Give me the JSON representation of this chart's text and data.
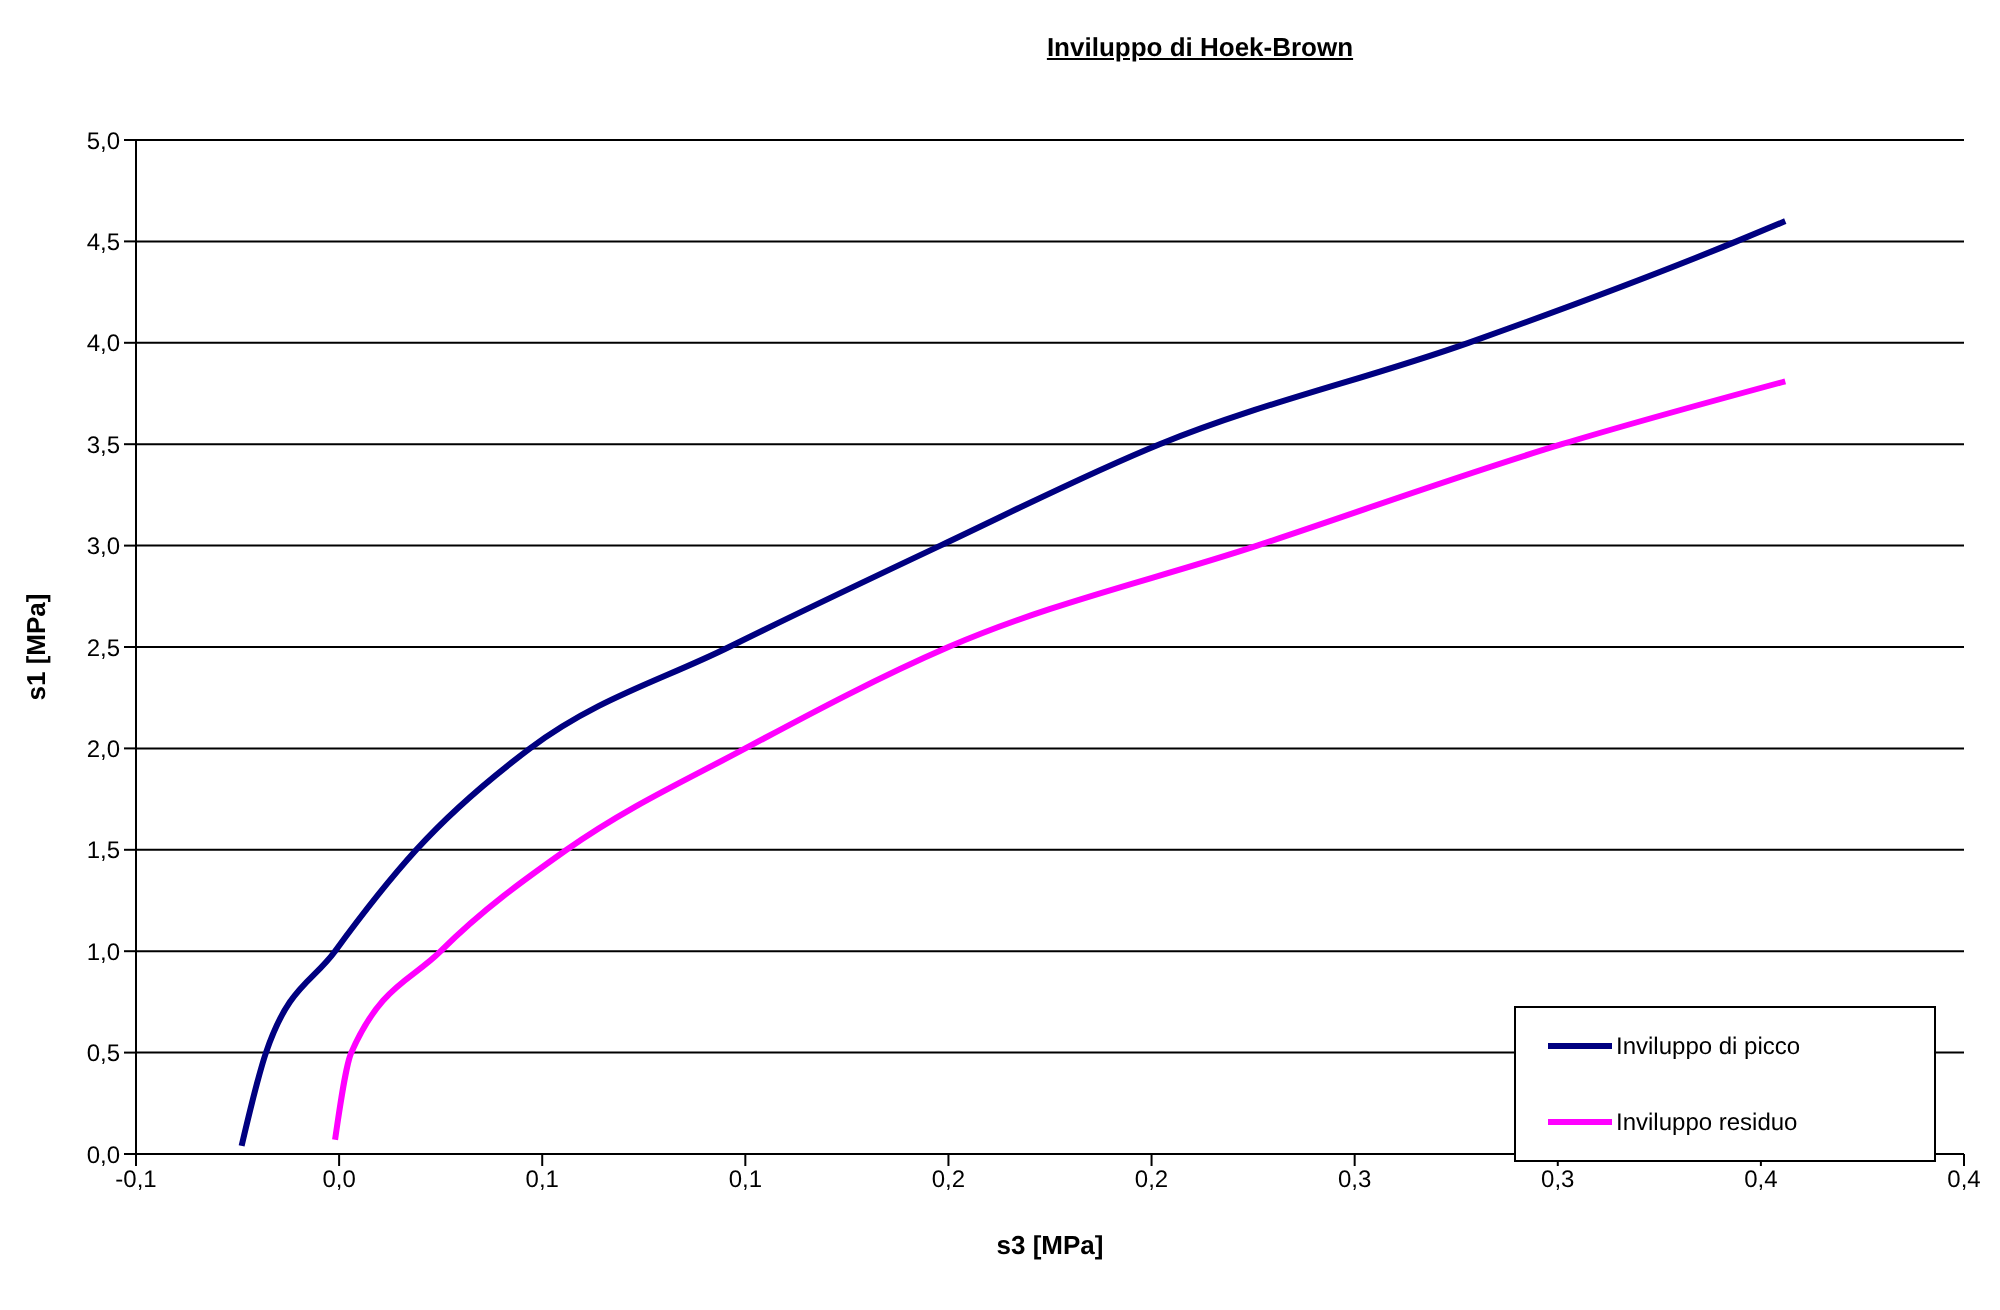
{
  "chart_data": {
    "type": "line",
    "title": "Inviluppo di Hoek-Brown",
    "xlabel": "s3 [MPa]",
    "ylabel": "s1 [MPa]",
    "xlim": [
      -0.05,
      0.4
    ],
    "xticks": [
      {
        "value": -0.05,
        "label": "-0,1"
      },
      {
        "value": 0,
        "label": "0,0"
      },
      {
        "value": 0.05,
        "label": "0,1"
      },
      {
        "value": 0.1,
        "label": "0,1"
      },
      {
        "value": 0.15,
        "label": "0,2"
      },
      {
        "value": 0.2,
        "label": "0,2"
      },
      {
        "value": 0.25,
        "label": "0,3"
      },
      {
        "value": 0.3,
        "label": "0,3"
      },
      {
        "value": 0.35,
        "label": "0,4"
      },
      {
        "value": 0.4,
        "label": "0,4"
      }
    ],
    "ylim": [
      0,
      5
    ],
    "yticks": [
      {
        "value": 0,
        "label": "0,0"
      },
      {
        "value": 0.5,
        "label": "0,5"
      },
      {
        "value": 1,
        "label": "1,0"
      },
      {
        "value": 1.5,
        "label": "1,5"
      },
      {
        "value": 2,
        "label": "2,0"
      },
      {
        "value": 2.5,
        "label": "2,5"
      },
      {
        "value": 3,
        "label": "3,0"
      },
      {
        "value": 3.5,
        "label": "3,5"
      },
      {
        "value": 4,
        "label": "4,0"
      },
      {
        "value": 4.5,
        "label": "4,5"
      },
      {
        "value": 5,
        "label": "5,0"
      }
    ],
    "grid": "y",
    "legend": "bottom right",
    "marker": "none",
    "line_style": "solid",
    "series": [
      {
        "name": "Inviluppo di picco",
        "color": "#000080",
        "x": [
          -0.024,
          -0.018,
          -0.001,
          0.019,
          0.047,
          0.096,
          0.148,
          0.202,
          0.278,
          0.344,
          0.356
        ],
        "values": [
          0.04,
          0.5,
          1,
          1.5,
          2,
          2.5,
          3,
          3.5,
          4,
          4.5,
          4.6
        ]
      },
      {
        "name": "Inviluppo residuo",
        "color": "#ff00ff",
        "x": [
          -0.001,
          0.003,
          0.025,
          0.056,
          0.1,
          0.15,
          0.226,
          0.301,
          0.356
        ],
        "values": [
          0.07,
          0.5,
          1,
          1.5,
          2,
          2.5,
          3,
          3.5,
          3.81
        ]
      }
    ]
  }
}
